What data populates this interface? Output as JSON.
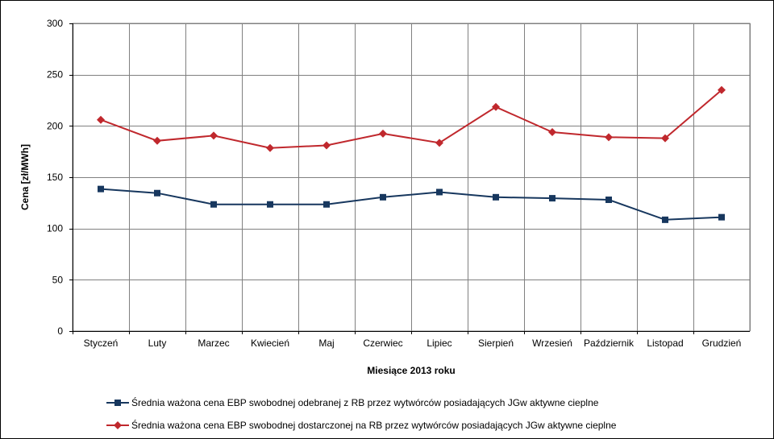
{
  "chart_data": {
    "type": "line",
    "title": "",
    "xlabel": "Miesiące 2013  roku",
    "ylabel": "Cena [zł/MWh]",
    "ylim": [
      0,
      300
    ],
    "yticks": [
      0,
      50,
      100,
      150,
      200,
      250,
      300
    ],
    "grid": true,
    "legend_position": "bottom",
    "categories": [
      "Styczeń",
      "Luty",
      "Marzec",
      "Kwiecień",
      "Maj",
      "Czerwiec",
      "Lipiec",
      "Sierpień",
      "Wrzesień",
      "Październik",
      "Listopad",
      "Grudzień"
    ],
    "series": [
      {
        "name": "Średnia ważona cena EBP swobodnej odebranej z RB przez wytwórców posiadających JGw aktywne cieplne",
        "color": "#17375e",
        "marker": "square",
        "values": [
          138.5,
          134.5,
          123.5,
          123.5,
          123.5,
          130.5,
          135.5,
          130.5,
          129.5,
          128.0,
          108.5,
          111.0
        ]
      },
      {
        "name": "Średnia ważona cena EBP swobodnej dostarczonej na RB przez wytwórców posiadających JGw aktywne cieplne",
        "color": "#c0282d",
        "marker": "diamond",
        "values": [
          206.0,
          185.5,
          190.5,
          178.5,
          181.0,
          192.5,
          183.5,
          218.5,
          194.0,
          189.0,
          188.0,
          235.0
        ]
      }
    ]
  }
}
